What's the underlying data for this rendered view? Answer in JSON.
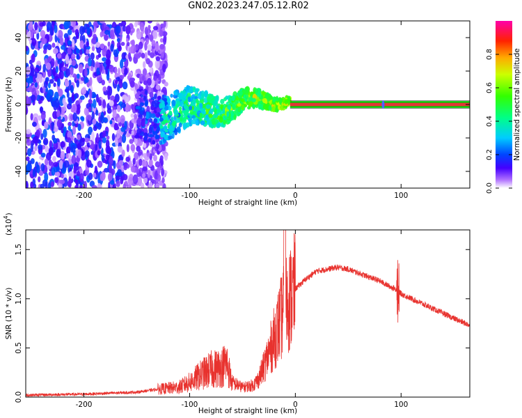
{
  "title": "GN02.2023.247.05.12.R02",
  "colors": {
    "bg": "#ffffff",
    "axis": "#000000",
    "snr_line": "#e8322e",
    "center_band": "#e23636",
    "center_band_edge": "#00cc00"
  },
  "chart_data": [
    {
      "type": "heatmap",
      "name": "spectrogram",
      "xlabel": "Height of straight line (km)",
      "ylabel": "Frequency (Hz)",
      "xlim": [
        -255,
        165
      ],
      "ylim": [
        -50,
        50
      ],
      "xticks": [
        -200,
        -100,
        0,
        100
      ],
      "xtick_labels": [
        "-200",
        "-100",
        "0",
        "100"
      ],
      "yticks": [
        -40,
        -20,
        0,
        20,
        40
      ],
      "ytick_labels": [
        "-40",
        "-20",
        "0",
        "20",
        "40"
      ],
      "colorbar": {
        "label": "Normalized spectral amplitude",
        "range": [
          0,
          1
        ],
        "ticks": [
          0.0,
          0.2,
          0.4,
          0.6,
          0.8
        ],
        "tick_labels": [
          "0.0",
          "0.2",
          "0.4",
          "0.6",
          "0.8"
        ]
      },
      "regions": [
        {
          "description": "scattered low-amplitude noise",
          "x_range": [
            -255,
            -122
          ],
          "y_range": [
            -50,
            50
          ],
          "amplitude": 0.08
        },
        {
          "description": "noisy signal cluster",
          "x_range": [
            -150,
            -60
          ],
          "y_range": [
            -20,
            15
          ],
          "amplitude": 0.25
        },
        {
          "description": "converging signal",
          "x_range": [
            -60,
            -5
          ],
          "y_range": [
            -5,
            8
          ],
          "amplitude": 0.6
        },
        {
          "description": "steady carrier at 0 Hz",
          "x_range": [
            -5,
            165
          ],
          "y_range": [
            -1,
            1
          ],
          "amplitude": 0.95
        }
      ]
    },
    {
      "type": "line",
      "name": "snr",
      "xlabel": "Height of straight line (km)",
      "ylabel": "SNR (10 * v/v)",
      "scale_label": "(x10",
      "scale_exponent": "4",
      "xlim": [
        -255,
        165
      ],
      "ylim": [
        0,
        1.7
      ],
      "xticks": [
        -200,
        -100,
        0,
        100
      ],
      "xtick_labels": [
        "-200",
        "-100",
        "0",
        "100"
      ],
      "yticks": [
        0.0,
        0.5,
        1.0,
        1.5
      ],
      "ytick_labels": [
        "0.0",
        "0.5",
        "1.0",
        "1.5"
      ],
      "series": [
        {
          "name": "SNR",
          "x": [
            -255,
            -200,
            -150,
            -130,
            -110,
            -100,
            -90,
            -80,
            -70,
            -65,
            -60,
            -50,
            -40,
            -35,
            -30,
            -25,
            -20,
            -15,
            -12,
            -10,
            -8,
            -5,
            0,
            10,
            20,
            30,
            40,
            50,
            60,
            70,
            80,
            90,
            95,
            98,
            100,
            110,
            120,
            130,
            140,
            150,
            165
          ],
          "values": [
            0.02,
            0.03,
            0.05,
            0.08,
            0.1,
            0.15,
            0.22,
            0.28,
            0.3,
            0.35,
            0.15,
            0.1,
            0.12,
            0.18,
            0.3,
            0.45,
            0.6,
            0.75,
            0.85,
            1.0,
            0.95,
            1.0,
            1.1,
            1.2,
            1.28,
            1.3,
            1.32,
            1.3,
            1.26,
            1.22,
            1.18,
            1.12,
            1.1,
            1.08,
            1.05,
            1.0,
            0.95,
            0.9,
            0.85,
            0.8,
            0.73
          ]
        }
      ],
      "annotations": [
        {
          "text": "spike",
          "x": -10,
          "y": 1.7
        },
        {
          "text": "spike",
          "x": 97,
          "y": 1.45
        }
      ]
    }
  ]
}
